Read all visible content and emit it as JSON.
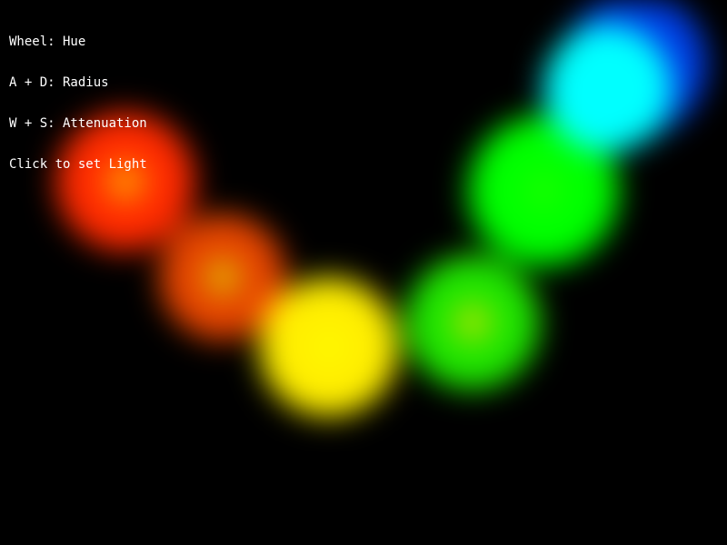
{
  "hud": {
    "lines": [
      "Wheel: Hue",
      "A + D: Radius",
      "W + S: Attenuation",
      "Click to set Light"
    ]
  },
  "scene": {
    "background": "#000000",
    "text_color": "#ffffff",
    "lights": [
      {
        "name": "red",
        "color": "#ff2a00",
        "core": "#ffd000",
        "weight": 1.0
      },
      {
        "name": "orange",
        "color": "#ff4c00",
        "core": "#ffff00",
        "weight": 0.9
      },
      {
        "name": "yellow-large",
        "color": "#ffee00",
        "core": "#ffff00",
        "weight": 1.0
      },
      {
        "name": "yellow-green",
        "color": "#22ff00",
        "core": "#ffff00",
        "weight": 0.9
      },
      {
        "name": "green",
        "color": "#00ff00",
        "core": "#22ff00",
        "weight": 1.0
      },
      {
        "name": "blue",
        "color": "#0044ff",
        "core": "#0044ff",
        "weight": 0.9
      },
      {
        "name": "cyan",
        "color": "#00ffff",
        "core": "#00ffff",
        "weight": 1.0
      }
    ]
  }
}
